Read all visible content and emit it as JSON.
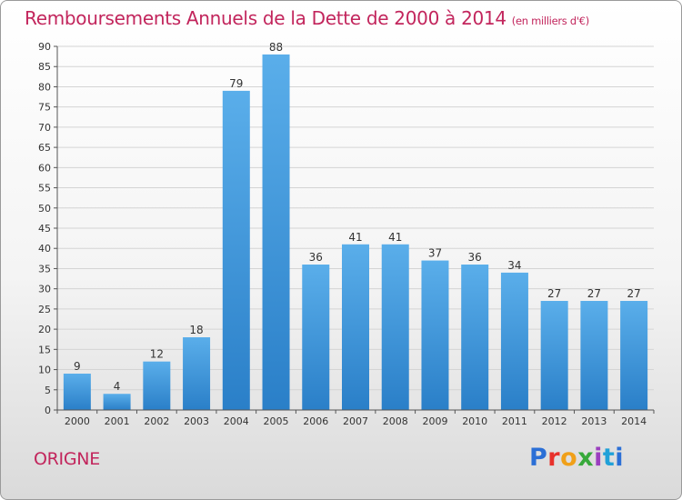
{
  "header": {
    "title": "Remboursements Annuels de la Dette de 2000 à 2014",
    "unit": "(en milliers d'€)"
  },
  "footer": {
    "commune": "ORIGNE",
    "brand": "Proxiti"
  },
  "colors": {
    "title": "#c2255c",
    "bar_top": "#5aaeea",
    "bar_bottom": "#2a7fc8",
    "grid": "#d4d4d4",
    "axis": "#555555"
  },
  "chart_data": {
    "type": "bar",
    "title": "Remboursements Annuels de la Dette de 2000 à 2014",
    "subtitle": "(en milliers d'€)",
    "xlabel": "",
    "ylabel": "",
    "categories": [
      "2000",
      "2001",
      "2002",
      "2003",
      "2004",
      "2005",
      "2006",
      "2007",
      "2008",
      "2009",
      "2010",
      "2011",
      "2012",
      "2013",
      "2014"
    ],
    "values": [
      9,
      4,
      12,
      18,
      79,
      88,
      36,
      41,
      41,
      37,
      36,
      34,
      27,
      27,
      27
    ],
    "ylim": [
      0,
      90
    ],
    "yticks": [
      0,
      5,
      10,
      15,
      20,
      25,
      30,
      35,
      40,
      45,
      50,
      55,
      60,
      65,
      70,
      75,
      80,
      85,
      90
    ],
    "grid": true,
    "legend": "none",
    "data_labels": true
  }
}
